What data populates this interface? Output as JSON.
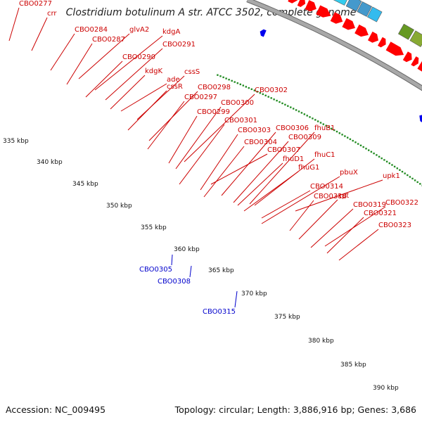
{
  "title": "Clostridium botulinum A str. ATCC 3502, complete genome",
  "footer": {
    "accession": "Accession: NC_009495",
    "summary": "Topology: circular; Length: 3,886,916 bp; Genes: 3,686"
  },
  "colors": {
    "forward_label": "#cc0000",
    "reverse_label": "#0000cc",
    "cds_forward": "#ff0000",
    "cds_reverse": "#0000ee",
    "backbone": "#a8a8a8",
    "tick_dots": "#228b22"
  },
  "labels_forward": [
    "CBO0277",
    "crr",
    "CBO0284",
    "glvA2",
    "kdgA",
    "CBO0287",
    "CBO0291",
    "CBO0290",
    "ade",
    "kdgK",
    "cssS",
    "cssR",
    "CBO0298",
    "CBO0297",
    "CBO0302",
    "CBO0300",
    "CBO0299",
    "CBO0301",
    "CBO0303",
    "CBO0306",
    "fhuB1",
    "CBO0304",
    "CBO0309",
    "CBO0307",
    "fhuD1",
    "fhuC1",
    "fhuG1",
    "pbuX",
    "upk1",
    "CBO0314",
    "CBO0318",
    "xpt",
    "CBO0319",
    "CBO0322",
    "CBO0321",
    "CBO0323"
  ],
  "labels_reverse": [
    "CBO0305",
    "CBO0308",
    "CBO0315"
  ],
  "scale": [
    "335 kbp",
    "340 kbp",
    "345 kbp",
    "350 kbp",
    "355 kbp",
    "360 kbp",
    "365 kbp",
    "370 kbp",
    "375 kbp",
    "380 kbp",
    "385 kbp",
    "390 kbp"
  ]
}
